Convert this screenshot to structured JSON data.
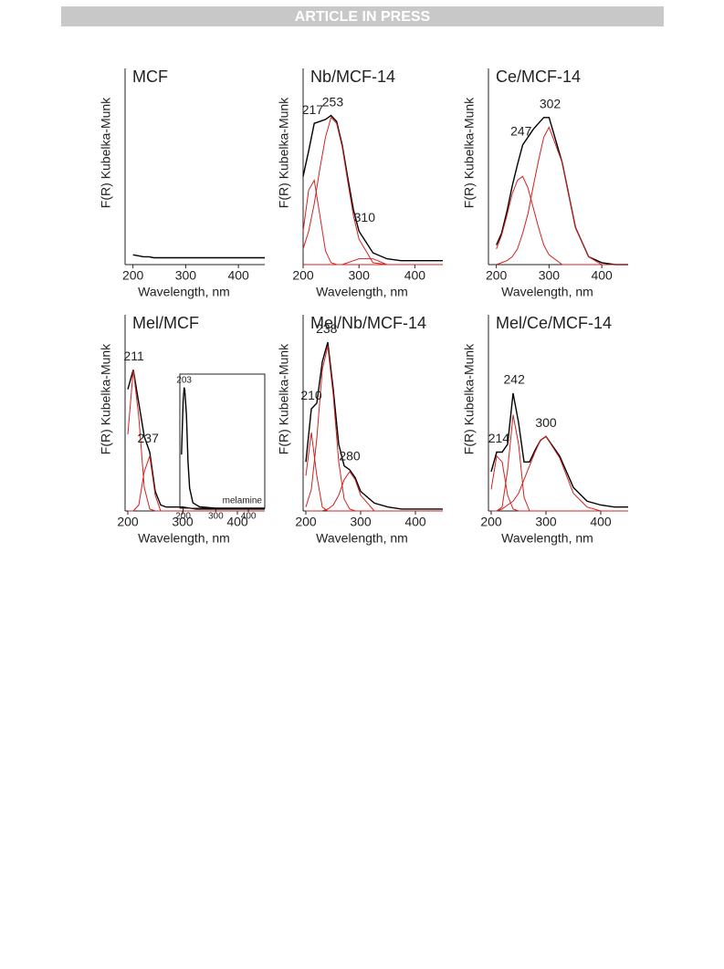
{
  "header": "ARTICLE IN PRESS",
  "chart_data": [
    {
      "type": "line",
      "title": "MCF",
      "y_label": "F(R) Kubelka-Munk",
      "x_label": "Wavelength, nm",
      "x": [
        200,
        210,
        220,
        230,
        240,
        250,
        260,
        270,
        280,
        290,
        300,
        325,
        350,
        375,
        400,
        425,
        450
      ],
      "xlim": [
        185,
        450
      ],
      "xticks": [
        200,
        300,
        400
      ],
      "ylim": [
        0,
        1
      ],
      "series": [
        {
          "color": "#000000",
          "values": [
            0.05,
            0.045,
            0.04,
            0.04,
            0.035,
            0.035,
            0.035,
            0.035,
            0.035,
            0.035,
            0.035,
            0.035,
            0.035,
            0.035,
            0.035,
            0.035,
            0.035
          ]
        }
      ]
    },
    {
      "type": "line",
      "title": "Nb/MCF-14",
      "y_label": "F(R) Kubelka-Munk",
      "x_label": "Wavelength, nm",
      "x": [
        200,
        210,
        220,
        230,
        240,
        250,
        260,
        270,
        280,
        290,
        300,
        325,
        350,
        375,
        400,
        425,
        450
      ],
      "xlim": [
        200,
        450
      ],
      "xticks": [
        200,
        300,
        400
      ],
      "ylim": [
        0,
        1
      ],
      "series": [
        {
          "color": "#000000",
          "values": [
            0.45,
            0.58,
            0.72,
            0.73,
            0.74,
            0.76,
            0.73,
            0.61,
            0.44,
            0.28,
            0.17,
            0.06,
            0.03,
            0.02,
            0.02,
            0.02,
            0.02
          ]
        },
        {
          "color": "#d42020",
          "values": [
            0.17,
            0.38,
            0.43,
            0.25,
            0.07,
            0.01,
            0,
            0,
            0,
            0,
            0,
            0,
            0,
            0,
            0,
            0,
            0
          ]
        },
        {
          "color": "#d42020",
          "values": [
            0.08,
            0.17,
            0.31,
            0.49,
            0.65,
            0.75,
            0.72,
            0.6,
            0.42,
            0.25,
            0.13,
            0.01,
            0,
            0,
            0,
            0,
            0
          ]
        },
        {
          "color": "#d42020",
          "values": [
            0,
            0,
            0,
            0,
            0,
            0,
            0,
            0,
            0.01,
            0.02,
            0.03,
            0.03,
            0,
            0,
            0,
            0,
            0
          ]
        }
      ],
      "peaks": [
        217,
        253,
        310
      ]
    },
    {
      "type": "line",
      "title": "Ce/MCF-14",
      "y_label": "F(R) Kubelka-Munk",
      "x_label": "Wavelength, nm",
      "x": [
        200,
        210,
        220,
        230,
        240,
        250,
        260,
        270,
        280,
        290,
        300,
        325,
        350,
        375,
        400,
        425,
        450
      ],
      "xlim": [
        185,
        450
      ],
      "xticks": [
        200,
        300,
        400
      ],
      "ylim": [
        0,
        1
      ],
      "series": [
        {
          "color": "#000000",
          "values": [
            0.1,
            0.16,
            0.27,
            0.4,
            0.51,
            0.61,
            0.65,
            0.69,
            0.72,
            0.75,
            0.75,
            0.52,
            0.19,
            0.04,
            0.01,
            0,
            0
          ]
        },
        {
          "color": "#d42020",
          "values": [
            0.08,
            0.15,
            0.25,
            0.36,
            0.43,
            0.45,
            0.39,
            0.29,
            0.19,
            0.1,
            0.05,
            0,
            0,
            0,
            0,
            0,
            0
          ]
        },
        {
          "color": "#d42020",
          "values": [
            0,
            0.01,
            0.02,
            0.04,
            0.08,
            0.16,
            0.26,
            0.4,
            0.53,
            0.65,
            0.7,
            0.52,
            0.19,
            0.04,
            0,
            0,
            0
          ]
        }
      ],
      "peaks": [
        247,
        302
      ]
    },
    {
      "type": "line",
      "title": "Mel/MCF",
      "y_label": "F(R) Kubelka-Munk",
      "x_label": "Wavelength, nm",
      "x": [
        200,
        210,
        220,
        230,
        240,
        250,
        260,
        270,
        280,
        290,
        300,
        325,
        350,
        375,
        400,
        425,
        450
      ],
      "xlim": [
        195,
        450
      ],
      "xticks": [
        200,
        300,
        400
      ],
      "ylim": [
        0,
        1
      ],
      "series": [
        {
          "color": "#000000",
          "values": [
            0.62,
            0.72,
            0.55,
            0.38,
            0.3,
            0.1,
            0.03,
            0.02,
            0.02,
            0.02,
            0.02,
            0.01,
            0.01,
            0.01,
            0.01,
            0.01,
            0.01
          ]
        },
        {
          "color": "#d42020",
          "values": [
            0.39,
            0.72,
            0.48,
            0.12,
            0.01,
            0,
            0,
            0,
            0,
            0,
            0,
            0,
            0,
            0,
            0,
            0,
            0
          ]
        },
        {
          "color": "#d42020",
          "values": [
            0,
            0,
            0.03,
            0.2,
            0.28,
            0.08,
            0,
            0,
            0,
            0,
            0,
            0,
            0,
            0,
            0,
            0,
            0
          ]
        }
      ],
      "peaks": [
        211,
        237
      ],
      "inset": {
        "type": "line",
        "label": "melamine",
        "x": [
          195,
          200,
          203,
          205,
          210,
          215,
          220,
          230,
          250,
          300,
          350,
          400,
          450
        ],
        "xlim": [
          190,
          450
        ],
        "xticks": [
          200,
          300,
          400
        ],
        "ylim": [
          0,
          1
        ],
        "series": [
          {
            "color": "#000000",
            "values": [
              0.4,
              0.8,
              0.9,
              0.88,
              0.7,
              0.35,
              0.15,
              0.04,
              0.01,
              0,
              0,
              0,
              0
            ]
          }
        ],
        "peaks": [
          203
        ]
      }
    },
    {
      "type": "line",
      "title": "Mel/Nb/MCF-14",
      "y_label": "F(R) Kubelka-Munk",
      "x_label": "Wavelength, nm",
      "x": [
        200,
        210,
        220,
        230,
        240,
        250,
        260,
        270,
        280,
        290,
        300,
        325,
        350,
        375,
        400,
        425,
        450
      ],
      "xlim": [
        195,
        450
      ],
      "xticks": [
        200,
        300,
        400
      ],
      "ylim": [
        0,
        1
      ],
      "series": [
        {
          "color": "#000000",
          "values": [
            0.25,
            0.52,
            0.55,
            0.76,
            0.86,
            0.62,
            0.34,
            0.23,
            0.21,
            0.17,
            0.1,
            0.04,
            0.02,
            0.01,
            0.01,
            0.01,
            0.01
          ]
        },
        {
          "color": "#d42020",
          "values": [
            0.18,
            0.4,
            0.18,
            0.02,
            0,
            0,
            0,
            0,
            0,
            0,
            0,
            0,
            0,
            0,
            0,
            0,
            0
          ]
        },
        {
          "color": "#d42020",
          "values": [
            0.02,
            0.11,
            0.37,
            0.72,
            0.84,
            0.59,
            0.25,
            0.06,
            0.01,
            0,
            0,
            0,
            0,
            0,
            0,
            0,
            0
          ]
        },
        {
          "color": "#d42020",
          "values": [
            0,
            0,
            0,
            0,
            0.01,
            0.03,
            0.08,
            0.16,
            0.2,
            0.16,
            0.08,
            0,
            0,
            0,
            0,
            0,
            0
          ]
        }
      ],
      "peaks": [
        210,
        238,
        280
      ]
    },
    {
      "type": "line",
      "title": "Mel/Ce/MCF-14",
      "y_label": "F(R) Kubelka-Munk",
      "x_label": "Wavelength, nm",
      "x": [
        200,
        210,
        220,
        230,
        240,
        250,
        260,
        270,
        280,
        290,
        300,
        325,
        350,
        375,
        400,
        425,
        450
      ],
      "xlim": [
        195,
        450
      ],
      "xticks": [
        200,
        300,
        400
      ],
      "ylim": [
        0,
        1
      ],
      "series": [
        {
          "color": "#000000",
          "values": [
            0.2,
            0.3,
            0.3,
            0.34,
            0.6,
            0.45,
            0.25,
            0.25,
            0.31,
            0.36,
            0.38,
            0.28,
            0.12,
            0.05,
            0.03,
            0.02,
            0.02
          ]
        },
        {
          "color": "#d42020",
          "values": [
            0.11,
            0.28,
            0.25,
            0.08,
            0.01,
            0,
            0,
            0,
            0,
            0,
            0,
            0,
            0,
            0,
            0,
            0,
            0
          ]
        },
        {
          "color": "#d42020",
          "values": [
            0,
            0,
            0.02,
            0.21,
            0.49,
            0.34,
            0.07,
            0,
            0,
            0,
            0,
            0,
            0,
            0,
            0,
            0,
            0
          ]
        },
        {
          "color": "#d42020",
          "values": [
            0,
            0,
            0.01,
            0.03,
            0.05,
            0.09,
            0.16,
            0.23,
            0.3,
            0.36,
            0.38,
            0.27,
            0.09,
            0.02,
            0,
            0,
            0
          ]
        }
      ],
      "peaks": [
        214,
        242,
        300
      ]
    }
  ]
}
